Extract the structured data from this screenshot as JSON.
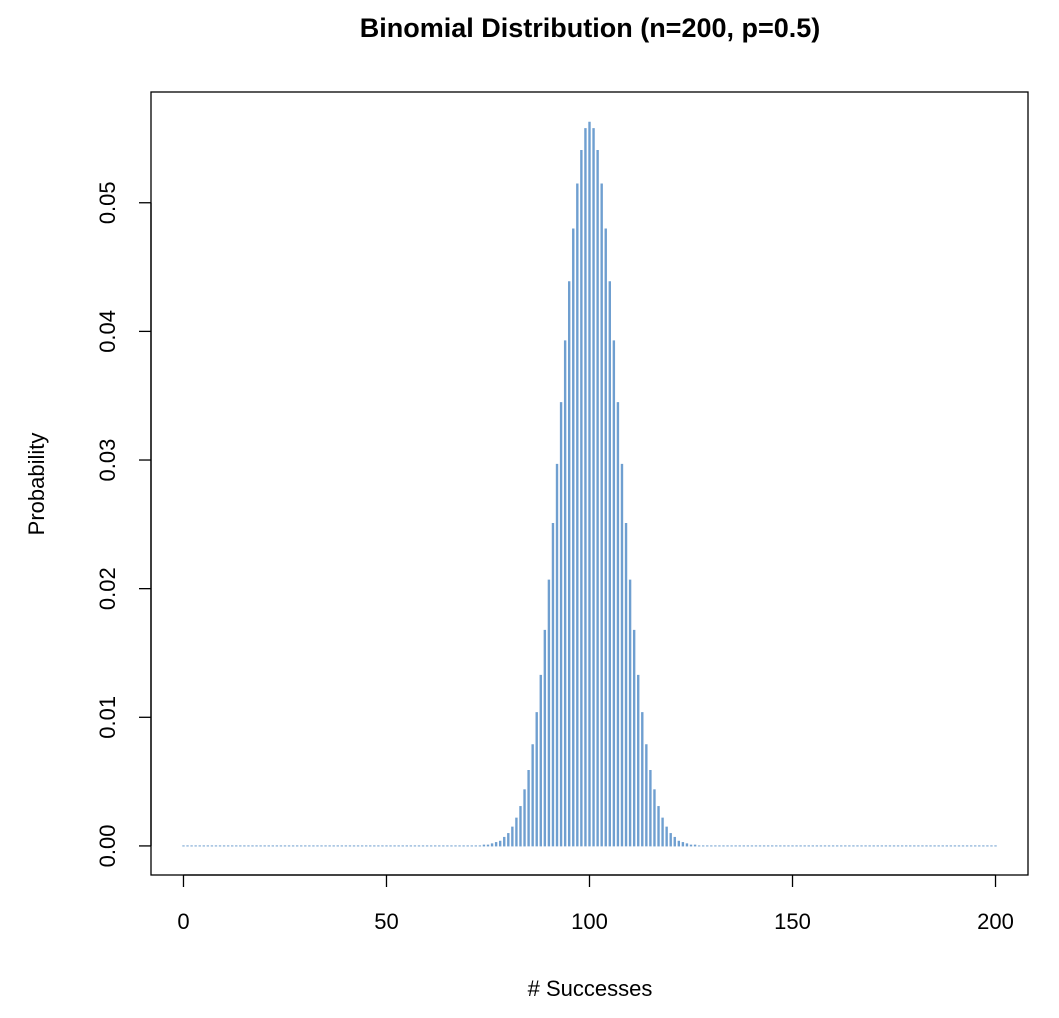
{
  "chart_data": {
    "type": "bar",
    "title": "Binomial Distribution (n=200, p=0.5)",
    "x_label": "# Successes",
    "y_label": "Probability",
    "color": "#6f9fd0",
    "x": [
      0,
      1,
      2,
      3,
      4,
      5,
      6,
      7,
      8,
      9,
      10,
      11,
      12,
      13,
      14,
      15,
      16,
      17,
      18,
      19,
      20,
      21,
      22,
      23,
      24,
      25,
      26,
      27,
      28,
      29,
      30,
      31,
      32,
      33,
      34,
      35,
      36,
      37,
      38,
      39,
      40,
      41,
      42,
      43,
      44,
      45,
      46,
      47,
      48,
      49,
      50,
      51,
      52,
      53,
      54,
      55,
      56,
      57,
      58,
      59,
      60,
      61,
      62,
      63,
      64,
      65,
      66,
      67,
      68,
      69,
      70,
      71,
      72,
      73,
      74,
      75,
      76,
      77,
      78,
      79,
      80,
      81,
      82,
      83,
      84,
      85,
      86,
      87,
      88,
      89,
      90,
      91,
      92,
      93,
      94,
      95,
      96,
      97,
      98,
      99,
      100,
      101,
      102,
      103,
      104,
      105,
      106,
      107,
      108,
      109,
      110,
      111,
      112,
      113,
      114,
      115,
      116,
      117,
      118,
      119,
      120,
      121,
      122,
      123,
      124,
      125,
      126,
      127,
      128,
      129,
      130,
      131,
      132,
      133,
      134,
      135,
      136,
      137,
      138,
      139,
      140,
      141,
      142,
      143,
      144,
      145,
      146,
      147,
      148,
      149,
      150,
      151,
      152,
      153,
      154,
      155,
      156,
      157,
      158,
      159,
      160,
      161,
      162,
      163,
      164,
      165,
      166,
      167,
      168,
      169,
      170,
      171,
      172,
      173,
      174,
      175,
      176,
      177,
      178,
      179,
      180,
      181,
      182,
      183,
      184,
      185,
      186,
      187,
      188,
      189,
      190,
      191,
      192,
      193,
      194,
      195,
      196,
      197,
      198,
      199,
      200
    ],
    "values": [
      0,
      0,
      0,
      0,
      0,
      0,
      0,
      0,
      0,
      0,
      0,
      0,
      0,
      0,
      0,
      0,
      0,
      0,
      0,
      0,
      0,
      0,
      0,
      0,
      0,
      0,
      0,
      0,
      0,
      0,
      0,
      0,
      0,
      0,
      0,
      0,
      0,
      0,
      0,
      0,
      0,
      0,
      0,
      0,
      0,
      0,
      0,
      0,
      0,
      0,
      0,
      0,
      0,
      0,
      0,
      0,
      0,
      0,
      0,
      0,
      0,
      0,
      0,
      0,
      0,
      0,
      0,
      0,
      0,
      0,
      0,
      0,
      0,
      0,
      0.0001,
      0.0001,
      0.0002,
      0.0003,
      0.0004,
      0.0007,
      0.001,
      0.0015,
      0.0022,
      0.0031,
      0.0044,
      0.0059,
      0.0079,
      0.0104,
      0.0133,
      0.0168,
      0.0207,
      0.0251,
      0.0297,
      0.0345,
      0.0393,
      0.0439,
      0.048,
      0.0515,
      0.0541,
      0.0558,
      0.0563,
      0.0558,
      0.0541,
      0.0515,
      0.048,
      0.0439,
      0.0393,
      0.0345,
      0.0297,
      0.0251,
      0.0207,
      0.0168,
      0.0133,
      0.0104,
      0.0079,
      0.0059,
      0.0044,
      0.0031,
      0.0022,
      0.0015,
      0.001,
      0.0007,
      0.0004,
      0.0003,
      0.0002,
      0.0001,
      0.0001,
      0,
      0,
      0,
      0,
      0,
      0,
      0,
      0,
      0,
      0,
      0,
      0,
      0,
      0,
      0,
      0,
      0,
      0,
      0,
      0,
      0,
      0,
      0,
      0,
      0,
      0,
      0,
      0,
      0,
      0,
      0,
      0,
      0,
      0,
      0,
      0,
      0,
      0,
      0,
      0,
      0,
      0,
      0,
      0,
      0,
      0,
      0,
      0,
      0,
      0,
      0,
      0,
      0,
      0,
      0,
      0,
      0,
      0,
      0,
      0,
      0,
      0,
      0,
      0,
      0,
      0,
      0,
      0,
      0,
      0,
      0,
      0,
      0,
      0
    ],
    "xlim": [
      -8,
      208
    ],
    "ylim": [
      -0.00226,
      0.05861
    ],
    "xticks": [
      0,
      50,
      100,
      150,
      200
    ],
    "yticks": [
      {
        "value": 0,
        "label": "0.00"
      },
      0.01,
      0.02,
      0.03,
      0.04,
      0.05
    ]
  }
}
